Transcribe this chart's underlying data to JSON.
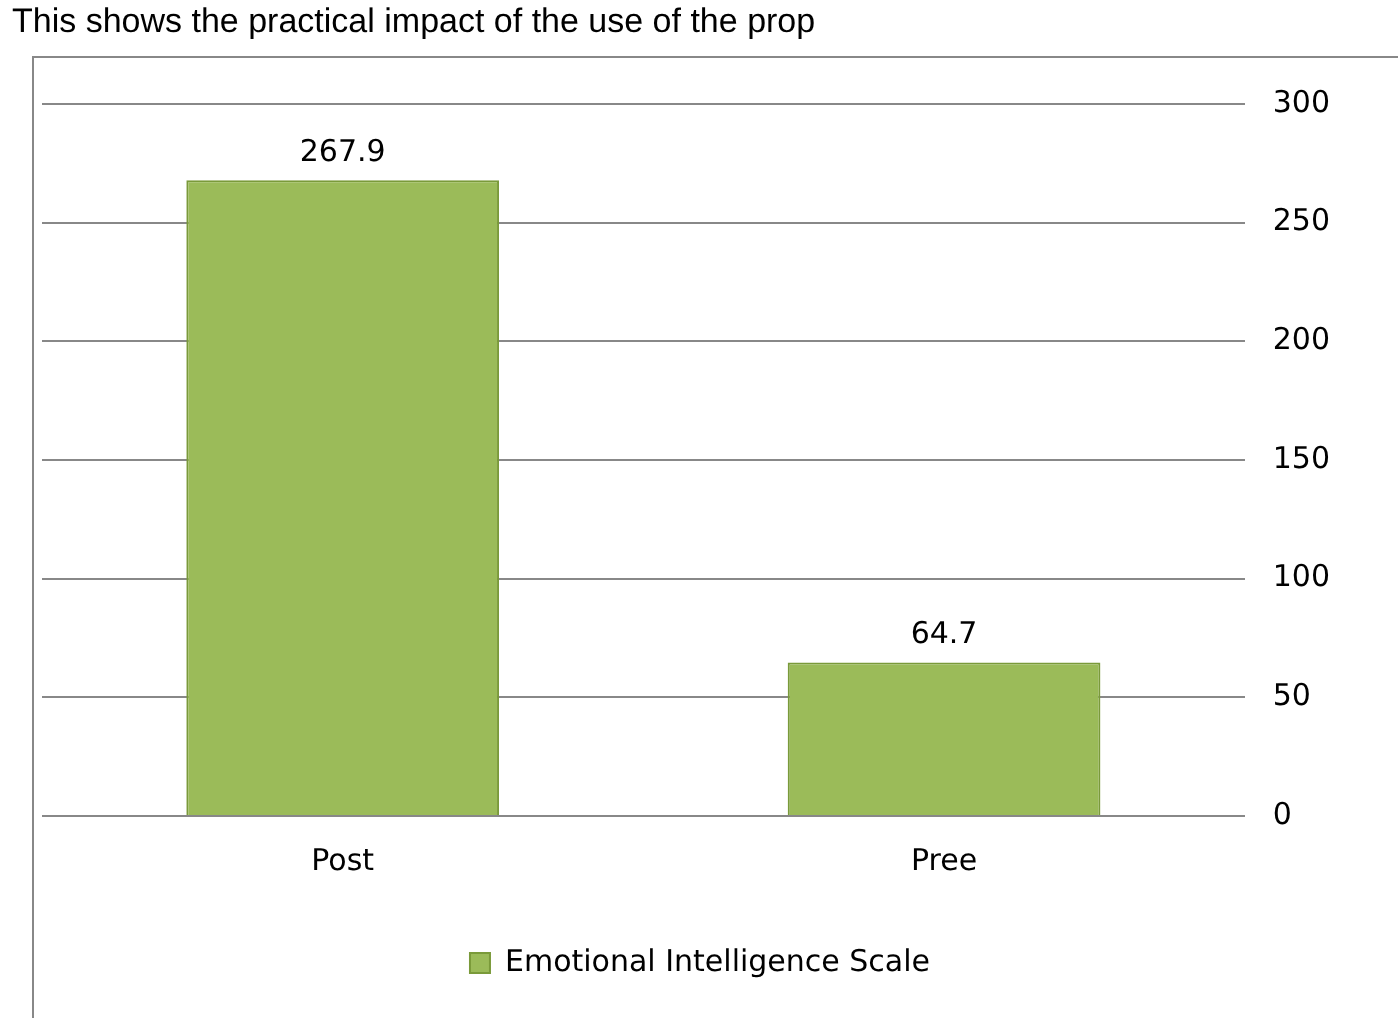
{
  "chart_data": {
    "type": "bar",
    "title": "This shows the practical impact of the use of the prop",
    "categories": [
      "Post",
      "Pree"
    ],
    "series": [
      {
        "name": "Emotional Intelligence Scale",
        "color": "#9bbb59",
        "values": [
          267.9,
          64.7
        ]
      }
    ],
    "ylim": [
      0,
      300
    ],
    "yticks": [
      0,
      50,
      100,
      150,
      200,
      250,
      300
    ],
    "grid": "y",
    "legend": "bottom",
    "data_labels": true
  }
}
